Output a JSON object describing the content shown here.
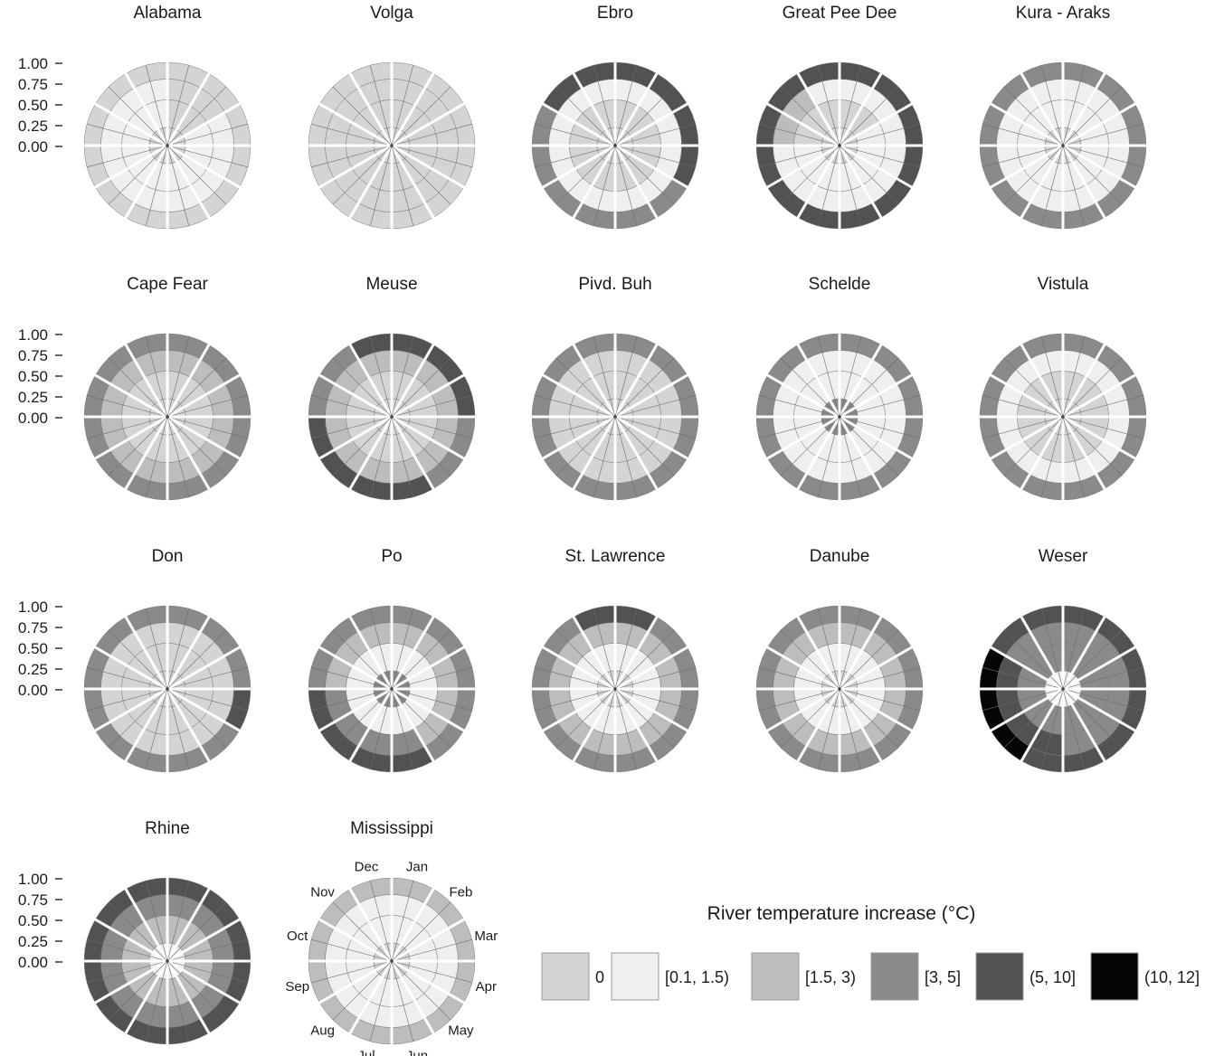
{
  "chart_data": {
    "type": "polar-bar",
    "panels": [
      {
        "title": "Alabama",
        "rings": [
          [
            0,
            0,
            0,
            0
          ],
          [
            0,
            0,
            0,
            0
          ],
          [
            0,
            1,
            1,
            0
          ],
          [
            0,
            1,
            1,
            0
          ],
          [
            0,
            1,
            1,
            0
          ],
          [
            0,
            1,
            1,
            0
          ],
          [
            0,
            1,
            1,
            0
          ],
          [
            0,
            1,
            1,
            0
          ],
          [
            0,
            1,
            1,
            0
          ],
          [
            0,
            1,
            1,
            0
          ],
          [
            0,
            1,
            1,
            0
          ],
          [
            0,
            1,
            1,
            0
          ]
        ]
      },
      {
        "title": "Volga",
        "rings": [
          [
            0,
            0,
            0,
            0
          ],
          [
            0,
            0,
            0,
            0
          ],
          [
            0,
            0,
            0,
            0
          ],
          [
            0,
            0,
            0,
            0
          ],
          [
            0,
            0,
            0,
            0
          ],
          [
            0,
            0,
            0,
            0
          ],
          [
            0,
            0,
            0,
            0
          ],
          [
            0,
            0,
            0,
            0
          ],
          [
            0,
            0,
            0,
            0
          ],
          [
            0,
            0,
            0,
            0
          ],
          [
            0,
            0,
            0,
            0
          ],
          [
            0,
            0,
            0,
            0
          ]
        ]
      },
      {
        "title": "Ebro",
        "rings": [
          [
            0,
            0,
            1,
            4
          ],
          [
            0,
            0,
            1,
            4
          ],
          [
            0,
            0,
            1,
            4
          ],
          [
            0,
            0,
            1,
            4
          ],
          [
            0,
            0,
            1,
            3
          ],
          [
            0,
            0,
            1,
            3
          ],
          [
            0,
            0,
            1,
            3
          ],
          [
            0,
            0,
            1,
            3
          ],
          [
            0,
            0,
            1,
            3
          ],
          [
            0,
            0,
            1,
            3
          ],
          [
            0,
            0,
            1,
            4
          ],
          [
            0,
            0,
            1,
            4
          ]
        ]
      },
      {
        "title": "Great Pee Dee",
        "rings": [
          [
            0,
            0,
            1,
            4
          ],
          [
            0,
            0,
            1,
            4
          ],
          [
            0,
            1,
            1,
            4
          ],
          [
            0,
            1,
            1,
            4
          ],
          [
            0,
            1,
            1,
            4
          ],
          [
            0,
            1,
            1,
            4
          ],
          [
            0,
            1,
            1,
            4
          ],
          [
            0,
            1,
            1,
            4
          ],
          [
            0,
            1,
            1,
            4
          ],
          [
            0,
            0,
            2,
            4
          ],
          [
            0,
            0,
            2,
            4
          ],
          [
            0,
            0,
            1,
            4
          ]
        ]
      },
      {
        "title": "Kura - Araks",
        "rings": [
          [
            0,
            1,
            1,
            3
          ],
          [
            0,
            1,
            1,
            3
          ],
          [
            0,
            1,
            1,
            3
          ],
          [
            0,
            1,
            1,
            3
          ],
          [
            0,
            1,
            1,
            3
          ],
          [
            0,
            1,
            1,
            3
          ],
          [
            0,
            1,
            1,
            3
          ],
          [
            0,
            1,
            1,
            3
          ],
          [
            0,
            1,
            1,
            3
          ],
          [
            0,
            1,
            1,
            3
          ],
          [
            0,
            1,
            1,
            3
          ],
          [
            0,
            1,
            1,
            3
          ]
        ]
      },
      {
        "title": "Cape Fear",
        "rings": [
          [
            0,
            0,
            2,
            3
          ],
          [
            0,
            0,
            2,
            3
          ],
          [
            0,
            0,
            2,
            3
          ],
          [
            0,
            0,
            2,
            3
          ],
          [
            0,
            0,
            2,
            3
          ],
          [
            0,
            0,
            2,
            3
          ],
          [
            0,
            0,
            2,
            3
          ],
          [
            0,
            0,
            2,
            3
          ],
          [
            0,
            0,
            2,
            3
          ],
          [
            0,
            0,
            2,
            3
          ],
          [
            0,
            0,
            2,
            3
          ],
          [
            0,
            0,
            2,
            3
          ]
        ]
      },
      {
        "title": "Meuse",
        "rings": [
          [
            0,
            0,
            2,
            4
          ],
          [
            0,
            0,
            2,
            4
          ],
          [
            0,
            0,
            2,
            4
          ],
          [
            0,
            0,
            2,
            3
          ],
          [
            0,
            0,
            2,
            3
          ],
          [
            0,
            0,
            2,
            4
          ],
          [
            0,
            0,
            2,
            4
          ],
          [
            0,
            0,
            2,
            4
          ],
          [
            0,
            0,
            2,
            4
          ],
          [
            0,
            0,
            2,
            3
          ],
          [
            0,
            0,
            2,
            3
          ],
          [
            0,
            0,
            2,
            4
          ]
        ]
      },
      {
        "title": "Pivd. Buh",
        "rings": [
          [
            0,
            0,
            0,
            3
          ],
          [
            0,
            0,
            0,
            3
          ],
          [
            0,
            0,
            0,
            3
          ],
          [
            0,
            0,
            0,
            3
          ],
          [
            0,
            0,
            0,
            3
          ],
          [
            0,
            0,
            0,
            3
          ],
          [
            0,
            0,
            0,
            3
          ],
          [
            0,
            0,
            0,
            3
          ],
          [
            0,
            0,
            0,
            3
          ],
          [
            0,
            0,
            0,
            3
          ],
          [
            0,
            0,
            0,
            3
          ],
          [
            0,
            0,
            0,
            3
          ]
        ]
      },
      {
        "title": "Schelde",
        "rings": [
          [
            3,
            1,
            1,
            3
          ],
          [
            3,
            1,
            1,
            3
          ],
          [
            3,
            1,
            1,
            3
          ],
          [
            3,
            1,
            1,
            3
          ],
          [
            3,
            1,
            1,
            3
          ],
          [
            3,
            1,
            1,
            3
          ],
          [
            3,
            1,
            1,
            3
          ],
          [
            3,
            1,
            1,
            3
          ],
          [
            3,
            1,
            1,
            3
          ],
          [
            3,
            1,
            1,
            3
          ],
          [
            3,
            1,
            1,
            3
          ],
          [
            3,
            1,
            1,
            3
          ]
        ]
      },
      {
        "title": "Vistula",
        "rings": [
          [
            0,
            0,
            1,
            3
          ],
          [
            0,
            0,
            1,
            3
          ],
          [
            0,
            0,
            1,
            3
          ],
          [
            0,
            0,
            1,
            3
          ],
          [
            0,
            0,
            1,
            3
          ],
          [
            0,
            0,
            1,
            3
          ],
          [
            0,
            0,
            1,
            3
          ],
          [
            0,
            0,
            1,
            3
          ],
          [
            0,
            0,
            1,
            3
          ],
          [
            0,
            0,
            1,
            3
          ],
          [
            0,
            0,
            1,
            3
          ],
          [
            0,
            0,
            1,
            3
          ]
        ]
      },
      {
        "title": "Don",
        "rings": [
          [
            0,
            0,
            0,
            3
          ],
          [
            0,
            0,
            0,
            3
          ],
          [
            0,
            0,
            0,
            3
          ],
          [
            0,
            0,
            0,
            4
          ],
          [
            0,
            0,
            0,
            3
          ],
          [
            0,
            0,
            0,
            3
          ],
          [
            0,
            0,
            0,
            3
          ],
          [
            0,
            0,
            0,
            3
          ],
          [
            0,
            0,
            0,
            3
          ],
          [
            0,
            0,
            0,
            3
          ],
          [
            0,
            0,
            0,
            3
          ],
          [
            0,
            0,
            0,
            3
          ]
        ]
      },
      {
        "title": "Po",
        "rings": [
          [
            3,
            1,
            2,
            3
          ],
          [
            3,
            1,
            2,
            3
          ],
          [
            3,
            1,
            2,
            3
          ],
          [
            3,
            1,
            2,
            3
          ],
          [
            3,
            1,
            2,
            3
          ],
          [
            3,
            1,
            3,
            4
          ],
          [
            3,
            1,
            3,
            4
          ],
          [
            3,
            1,
            3,
            4
          ],
          [
            3,
            1,
            3,
            4
          ],
          [
            3,
            1,
            2,
            3
          ],
          [
            3,
            1,
            2,
            3
          ],
          [
            3,
            1,
            2,
            3
          ]
        ]
      },
      {
        "title": "St. Lawrence",
        "rings": [
          [
            0,
            1,
            2,
            4
          ],
          [
            0,
            1,
            2,
            3
          ],
          [
            0,
            1,
            2,
            3
          ],
          [
            0,
            1,
            2,
            3
          ],
          [
            0,
            1,
            2,
            3
          ],
          [
            0,
            1,
            2,
            3
          ],
          [
            0,
            1,
            2,
            3
          ],
          [
            0,
            1,
            2,
            3
          ],
          [
            0,
            1,
            2,
            3
          ],
          [
            0,
            1,
            2,
            3
          ],
          [
            0,
            1,
            2,
            3
          ],
          [
            0,
            1,
            2,
            4
          ]
        ]
      },
      {
        "title": "Danube",
        "rings": [
          [
            0,
            1,
            2,
            3
          ],
          [
            0,
            1,
            2,
            3
          ],
          [
            0,
            1,
            2,
            3
          ],
          [
            0,
            1,
            2,
            3
          ],
          [
            0,
            1,
            2,
            3
          ],
          [
            0,
            1,
            2,
            3
          ],
          [
            0,
            1,
            2,
            3
          ],
          [
            0,
            1,
            2,
            3
          ],
          [
            0,
            1,
            2,
            3
          ],
          [
            0,
            1,
            2,
            3
          ],
          [
            0,
            1,
            2,
            3
          ],
          [
            0,
            1,
            2,
            3
          ]
        ]
      },
      {
        "title": "Weser",
        "rings": [
          [
            1,
            3,
            3,
            4
          ],
          [
            1,
            3,
            3,
            4
          ],
          [
            1,
            3,
            3,
            4
          ],
          [
            1,
            3,
            3,
            4
          ],
          [
            1,
            3,
            3,
            4
          ],
          [
            1,
            3,
            3,
            4
          ],
          [
            1,
            3,
            4,
            4
          ],
          [
            1,
            3,
            4,
            5
          ],
          [
            1,
            3,
            4,
            5
          ],
          [
            1,
            3,
            4,
            5
          ],
          [
            1,
            3,
            3,
            4
          ],
          [
            1,
            3,
            3,
            4
          ]
        ]
      },
      {
        "title": "Mississippi",
        "rings": [
          [
            0,
            1,
            1,
            2
          ],
          [
            0,
            1,
            1,
            2
          ],
          [
            0,
            1,
            1,
            2
          ],
          [
            0,
            1,
            1,
            2
          ],
          [
            0,
            1,
            1,
            2
          ],
          [
            0,
            1,
            1,
            2
          ],
          [
            0,
            1,
            1,
            2
          ],
          [
            0,
            1,
            1,
            2
          ],
          [
            0,
            1,
            1,
            2
          ],
          [
            0,
            1,
            1,
            2
          ],
          [
            0,
            1,
            1,
            2
          ],
          [
            0,
            1,
            1,
            2
          ]
        ]
      }
    ],
    "rhine": {
      "title": "Rhine",
      "rings": [
        [
          1,
          2,
          3,
          4
        ],
        [
          1,
          2,
          3,
          4
        ],
        [
          1,
          2,
          3,
          4
        ],
        [
          1,
          2,
          3,
          4
        ],
        [
          1,
          2,
          3,
          4
        ],
        [
          1,
          2,
          3,
          4
        ],
        [
          1,
          2,
          3,
          4
        ],
        [
          1,
          2,
          3,
          4
        ],
        [
          1,
          2,
          3,
          4
        ],
        [
          1,
          2,
          3,
          4
        ],
        [
          1,
          2,
          3,
          4
        ],
        [
          1,
          2,
          3,
          4
        ]
      ]
    },
    "radial_ticks": [
      "1.00",
      "0.75",
      "0.50",
      "0.25",
      "0.00"
    ],
    "months": [
      "Jan",
      "Feb",
      "Mar",
      "Apr",
      "May",
      "Jun",
      "Jul",
      "Aug",
      "Sep",
      "Oct",
      "Nov",
      "Dec"
    ],
    "legend": {
      "title": "River temperature increase (°C)",
      "entries": [
        {
          "label": "0",
          "color": "#d4d4d4"
        },
        {
          "label": "[0.1, 1.5)",
          "color": "#efefef"
        },
        {
          "label": "[1.5, 3)",
          "color": "#bdbdbd"
        },
        {
          "label": "[3, 5]",
          "color": "#8a8a8a"
        },
        {
          "label": "(5, 10]",
          "color": "#525252"
        },
        {
          "label": "(10, 12]",
          "color": "#050505"
        }
      ]
    }
  }
}
